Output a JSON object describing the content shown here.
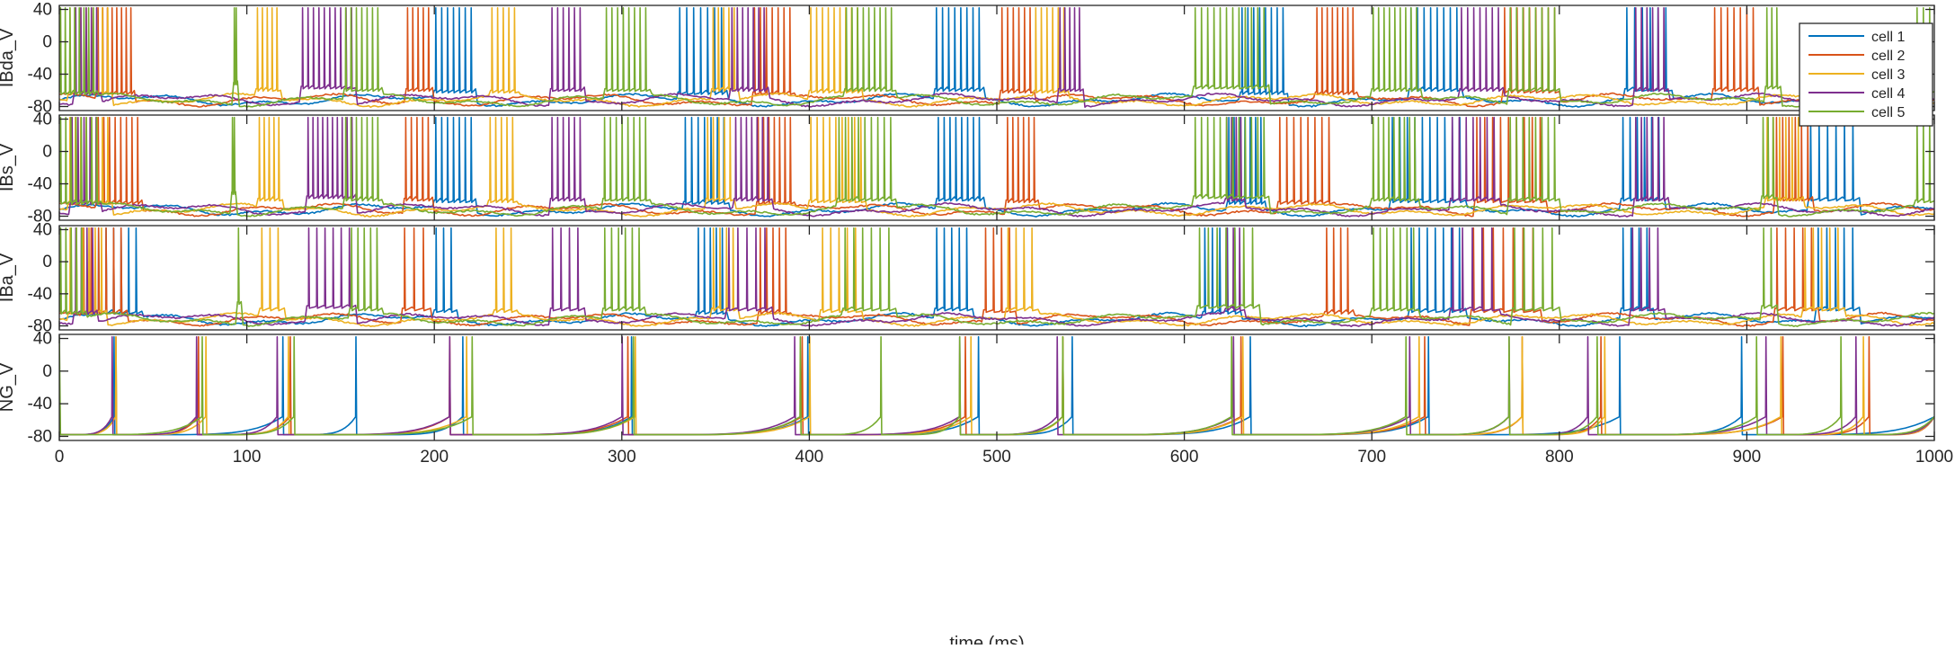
{
  "chart_data": {
    "type": "line",
    "xlabel": "time (ms)",
    "xlim": [
      0,
      1000
    ],
    "xticks": [
      0,
      100,
      200,
      300,
      400,
      500,
      600,
      700,
      800,
      900,
      1000
    ],
    "ylim": [
      -85,
      45
    ],
    "yticks": [
      -80,
      -40,
      0,
      40
    ],
    "legend": {
      "placement": "top-right",
      "entries": [
        "cell 1",
        "cell 2",
        "cell 3",
        "cell 4",
        "cell 5"
      ]
    },
    "colors": [
      "#0072BD",
      "#D95319",
      "#EDB120",
      "#7E2F8E",
      "#77AC30"
    ],
    "panels": [
      {
        "ylabel": "IBda_V",
        "bursts": [
          [
            [
              200,
              222,
              -60,
              7
            ],
            [
              330,
              356,
              -62,
              7
            ],
            [
              467,
              493,
              -58,
              8
            ],
            [
              630,
              655,
              -62,
              8
            ],
            [
              720,
              748,
              -58,
              8
            ],
            [
              835,
              860,
              -58,
              6
            ]
          ],
          [
            [
              20,
              40,
              -62,
              8
            ],
            [
              185,
              199,
              -58,
              5
            ],
            [
              370,
              392,
              -62,
              7
            ],
            [
              502,
              520,
              -60,
              6
            ],
            [
              670,
              692,
              -62,
              8
            ],
            [
              770,
              800,
              -60,
              9
            ],
            [
              882,
              906,
              -58,
              7
            ]
          ],
          [
            [
              5,
              28,
              -62,
              8
            ],
            [
              105,
              118,
              -58,
              5
            ],
            [
              230,
              245,
              -60,
              5
            ],
            [
              348,
              362,
              -58,
              5
            ],
            [
              400,
              428,
              -60,
              9
            ],
            [
              520,
              538,
              -60,
              6
            ]
          ],
          [
            [
              8,
              22,
              -62,
              5
            ],
            [
              129,
              158,
              -55,
              10
            ],
            [
              262,
              280,
              -58,
              6
            ],
            [
              358,
              378,
              -58,
              7
            ],
            [
              533,
              546,
              -58,
              5
            ],
            [
              747,
              770,
              -58,
              7
            ],
            [
              840,
              858,
              -58,
              6
            ]
          ],
          [
            [
              0,
              20,
              -62,
              8
            ],
            [
              93,
              95,
              -50,
              2
            ],
            [
              152,
              172,
              -58,
              7
            ],
            [
              291,
              315,
              -58,
              8
            ],
            [
              419,
              446,
              -58,
              9
            ],
            [
              605,
              645,
              -55,
              12
            ],
            [
              700,
              726,
              -58,
              9
            ],
            [
              773,
              800,
              -58,
              8
            ],
            [
              910,
              918,
              -55,
              3
            ],
            [
              990,
              1000,
              -60,
              3
            ]
          ]
        ]
      },
      {
        "ylabel": "IBs_V",
        "bursts": [
          [
            [
              200,
              222,
              -60,
              7
            ],
            [
              333,
              357,
              -62,
              7
            ],
            [
              468,
              493,
              -58,
              8
            ],
            [
              623,
              643,
              -62,
              7
            ],
            [
              710,
              750,
              -60,
              10
            ],
            [
              833,
              856,
              -58,
              6
            ],
            [
              933,
              960,
              -58,
              6
            ]
          ],
          [
            [
              20,
              44,
              -62,
              8
            ],
            [
              184,
              199,
              -58,
              5
            ],
            [
              372,
              392,
              -62,
              7
            ],
            [
              505,
              522,
              -60,
              6
            ],
            [
              650,
              680,
              -62,
              8
            ],
            [
              755,
              793,
              -60,
              9
            ],
            [
              915,
              935,
              -58,
              6
            ]
          ],
          [
            [
              5,
              28,
              -62,
              8
            ],
            [
              106,
              119,
              -58,
              5
            ],
            [
              229,
              244,
              -60,
              5
            ],
            [
              345,
              360,
              -58,
              5
            ],
            [
              400,
              430,
              -60,
              9
            ],
            [
              910,
              930,
              -58,
              6
            ]
          ],
          [
            [
              6,
              22,
              -62,
              5
            ],
            [
              132,
              158,
              -55,
              10
            ],
            [
              262,
              280,
              -58,
              6
            ],
            [
              360,
              380,
              -58,
              7
            ],
            [
              622,
              632,
              -58,
              4
            ],
            [
              742,
              768,
              -58,
              7
            ],
            [
              840,
              858,
              -58,
              6
            ]
          ],
          [
            [
              0,
              22,
              -62,
              8
            ],
            [
              92,
              94,
              -50,
              2
            ],
            [
              152,
              172,
              -58,
              7
            ],
            [
              290,
              315,
              -58,
              8
            ],
            [
              415,
              446,
              -58,
              9
            ],
            [
              605,
              645,
              -55,
              12
            ],
            [
              700,
              725,
              -58,
              9
            ],
            [
              773,
              800,
              -58,
              8
            ],
            [
              908,
              916,
              -55,
              3
            ],
            [
              990,
              1000,
              -60,
              3
            ]
          ]
        ]
      },
      {
        "ylabel": "IBa_V",
        "bursts": [
          [
            [
              20,
              44,
              -62,
              6
            ],
            [
              200,
              212,
              -60,
              3
            ],
            [
              340,
              356,
              -62,
              5
            ],
            [
              467,
              487,
              -58,
              5
            ],
            [
              610,
              630,
              -62,
              5
            ],
            [
              720,
              750,
              -60,
              7
            ],
            [
              833,
              850,
              -58,
              4
            ],
            [
              937,
              960,
              -58,
              5
            ]
          ],
          [
            [
              12,
              36,
              -62,
              6
            ],
            [
              183,
              198,
              -58,
              3
            ],
            [
              373,
              390,
              -62,
              5
            ],
            [
              493,
              510,
              -60,
              4
            ],
            [
              675,
              690,
              -62,
              4
            ],
            [
              753,
              790,
              -60,
              7
            ],
            [
              915,
              938,
              -58,
              5
            ]
          ],
          [
            [
              5,
              25,
              -62,
              6
            ],
            [
              107,
              120,
              -58,
              3
            ],
            [
              232,
              244,
              -60,
              3
            ],
            [
              348,
              362,
              -58,
              4
            ],
            [
              406,
              428,
              -60,
              5
            ],
            [
              505,
              522,
              -58,
              4
            ],
            [
              930,
              952,
              -58,
              5
            ]
          ],
          [
            [
              8,
              20,
              -62,
              4
            ],
            [
              132,
              158,
              -55,
              6
            ],
            [
              262,
              280,
              -58,
              4
            ],
            [
              356,
              380,
              -58,
              5
            ],
            [
              622,
              632,
              -58,
              3
            ],
            [
              742,
              768,
              -58,
              5
            ],
            [
              838,
              856,
              -58,
              4
            ]
          ],
          [
            [
              0,
              14,
              -62,
              5
            ],
            [
              95,
              97,
              -50,
              1
            ],
            [
              155,
              172,
              -58,
              5
            ],
            [
              290,
              312,
              -58,
              6
            ],
            [
              418,
              446,
              -58,
              6
            ],
            [
              607,
              640,
              -55,
              7
            ],
            [
              700,
              725,
              -58,
              7
            ],
            [
              775,
              800,
              -58,
              5
            ],
            [
              908,
              916,
              -55,
              2
            ]
          ]
        ]
      },
      {
        "ylabel": "NG_V",
        "spikes": [
          [
            29,
            119,
            158,
            215,
            305,
            399,
            490,
            540,
            635,
            730,
            832,
            897
          ],
          [
            30,
            74,
            123,
            208,
            303,
            396,
            483,
            535,
            630,
            728,
            780,
            822,
            919,
            965
          ],
          [
            30,
            78,
            122,
            217,
            307,
            400,
            486,
            535,
            631,
            725,
            780,
            824,
            918,
            962
          ],
          [
            28,
            73,
            116,
            208,
            300,
            392,
            480,
            532,
            626,
            720,
            773,
            815,
            910,
            958
          ],
          [
            0,
            76,
            125,
            220,
            306,
            395,
            438,
            480,
            535,
            625,
            718,
            773,
            820,
            905,
            950
          ]
        ]
      }
    ]
  }
}
